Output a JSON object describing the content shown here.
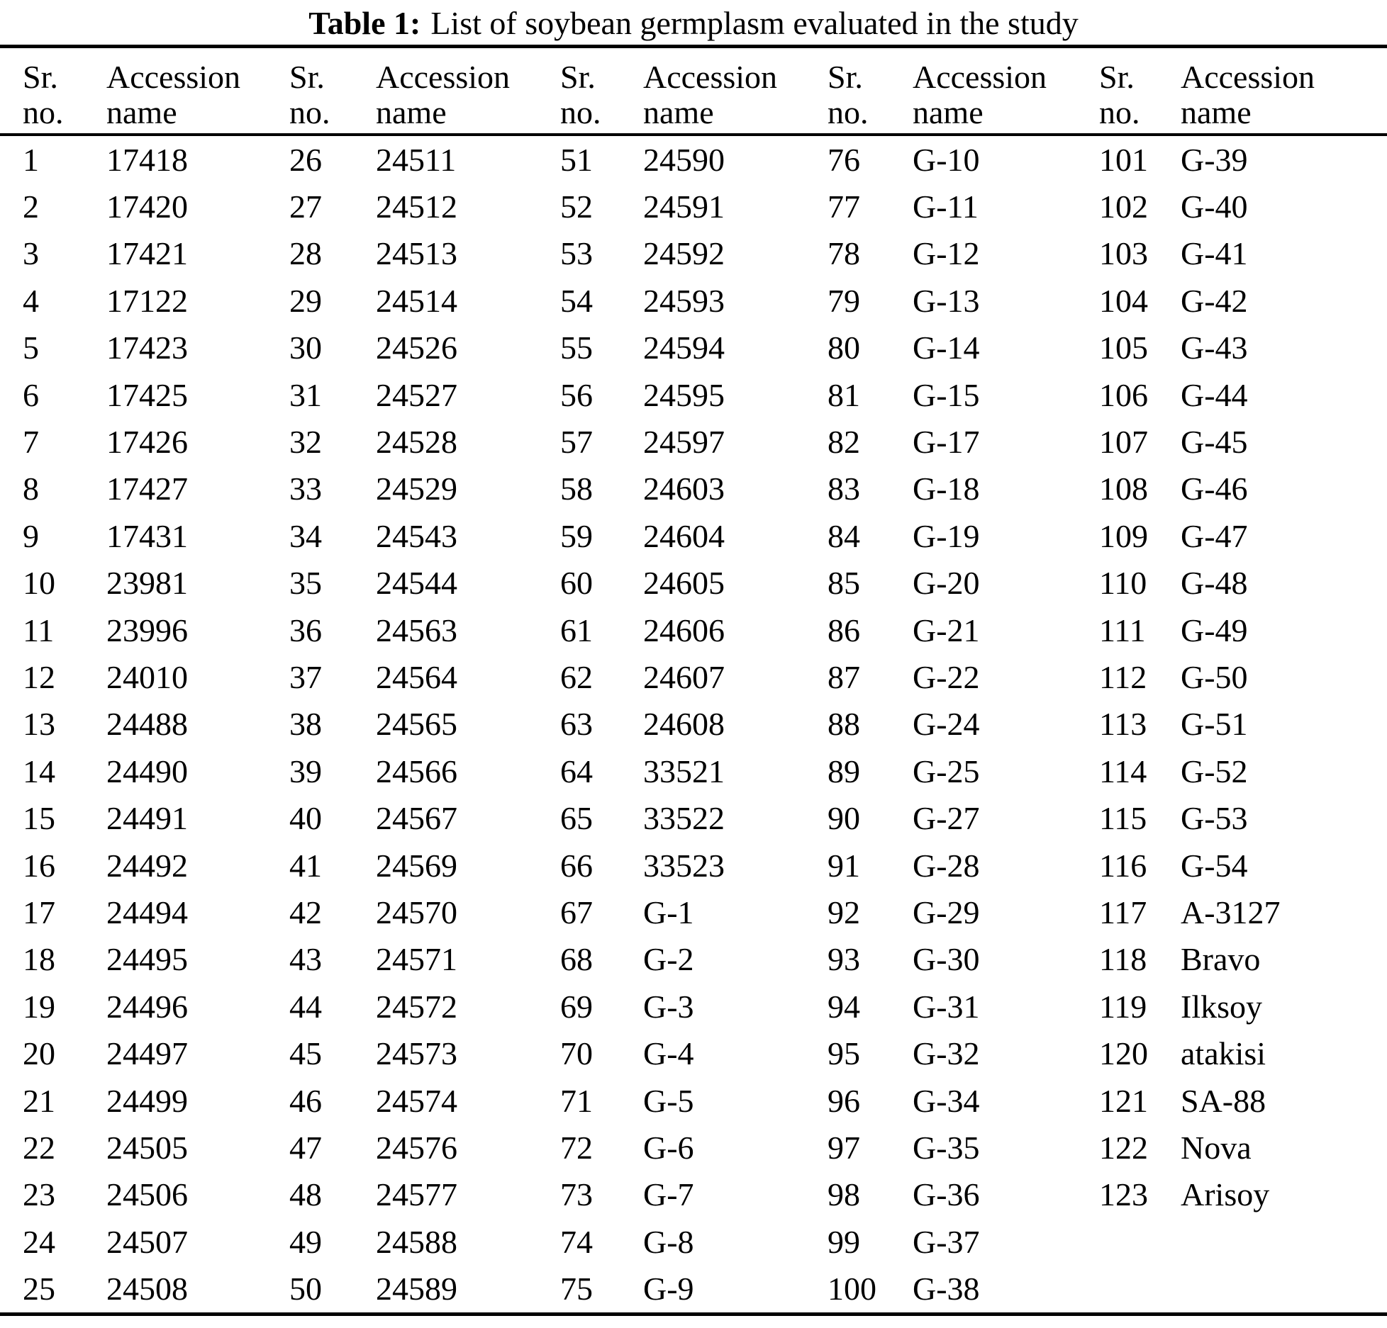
{
  "caption": {
    "label": "Table 1:",
    "text": "List of soybean germplasm evaluated in the study"
  },
  "header": {
    "sr_line1": "Sr.",
    "sr_line2": "no.",
    "name_line1": "Accession",
    "name_line2": "name"
  },
  "table": {
    "row_count": 25,
    "columns": [
      {
        "entries": [
          {
            "no": "1",
            "name": "17418"
          },
          {
            "no": "2",
            "name": "17420"
          },
          {
            "no": "3",
            "name": "17421"
          },
          {
            "no": "4",
            "name": "17122"
          },
          {
            "no": "5",
            "name": "17423"
          },
          {
            "no": "6",
            "name": "17425"
          },
          {
            "no": "7",
            "name": "17426"
          },
          {
            "no": "8",
            "name": "17427"
          },
          {
            "no": "9",
            "name": "17431"
          },
          {
            "no": "10",
            "name": "23981"
          },
          {
            "no": "11",
            "name": "23996"
          },
          {
            "no": "12",
            "name": "24010"
          },
          {
            "no": "13",
            "name": "24488"
          },
          {
            "no": "14",
            "name": "24490"
          },
          {
            "no": "15",
            "name": "24491"
          },
          {
            "no": "16",
            "name": "24492"
          },
          {
            "no": "17",
            "name": "24494"
          },
          {
            "no": "18",
            "name": "24495"
          },
          {
            "no": "19",
            "name": "24496"
          },
          {
            "no": "20",
            "name": "24497"
          },
          {
            "no": "21",
            "name": "24499"
          },
          {
            "no": "22",
            "name": "24505"
          },
          {
            "no": "23",
            "name": "24506"
          },
          {
            "no": "24",
            "name": "24507"
          },
          {
            "no": "25",
            "name": "24508"
          }
        ]
      },
      {
        "entries": [
          {
            "no": "26",
            "name": "24511"
          },
          {
            "no": "27",
            "name": "24512"
          },
          {
            "no": "28",
            "name": "24513"
          },
          {
            "no": "29",
            "name": "24514"
          },
          {
            "no": "30",
            "name": "24526"
          },
          {
            "no": "31",
            "name": "24527"
          },
          {
            "no": "32",
            "name": "24528"
          },
          {
            "no": "33",
            "name": "24529"
          },
          {
            "no": "34",
            "name": "24543"
          },
          {
            "no": "35",
            "name": "24544"
          },
          {
            "no": "36",
            "name": "24563"
          },
          {
            "no": "37",
            "name": "24564"
          },
          {
            "no": "38",
            "name": "24565"
          },
          {
            "no": "39",
            "name": "24566"
          },
          {
            "no": "40",
            "name": "24567"
          },
          {
            "no": "41",
            "name": "24569"
          },
          {
            "no": "42",
            "name": "24570"
          },
          {
            "no": "43",
            "name": "24571"
          },
          {
            "no": "44",
            "name": "24572"
          },
          {
            "no": "45",
            "name": "24573"
          },
          {
            "no": "46",
            "name": "24574"
          },
          {
            "no": "47",
            "name": "24576"
          },
          {
            "no": "48",
            "name": "24577"
          },
          {
            "no": "49",
            "name": "24588"
          },
          {
            "no": "50",
            "name": "24589"
          }
        ]
      },
      {
        "entries": [
          {
            "no": "51",
            "name": "24590"
          },
          {
            "no": "52",
            "name": "24591"
          },
          {
            "no": "53",
            "name": "24592"
          },
          {
            "no": "54",
            "name": "24593"
          },
          {
            "no": "55",
            "name": "24594"
          },
          {
            "no": "56",
            "name": "24595"
          },
          {
            "no": "57",
            "name": "24597"
          },
          {
            "no": "58",
            "name": "24603"
          },
          {
            "no": "59",
            "name": "24604"
          },
          {
            "no": "60",
            "name": "24605"
          },
          {
            "no": "61",
            "name": "24606"
          },
          {
            "no": "62",
            "name": "24607"
          },
          {
            "no": "63",
            "name": "24608"
          },
          {
            "no": "64",
            "name": "33521"
          },
          {
            "no": "65",
            "name": "33522"
          },
          {
            "no": "66",
            "name": "33523"
          },
          {
            "no": "67",
            "name": "G-1"
          },
          {
            "no": "68",
            "name": "G-2"
          },
          {
            "no": "69",
            "name": "G-3"
          },
          {
            "no": "70",
            "name": "G-4"
          },
          {
            "no": "71",
            "name": "G-5"
          },
          {
            "no": "72",
            "name": "G-6"
          },
          {
            "no": "73",
            "name": "G-7"
          },
          {
            "no": "74",
            "name": "G-8"
          },
          {
            "no": "75",
            "name": "G-9"
          }
        ]
      },
      {
        "entries": [
          {
            "no": "76",
            "name": "G-10"
          },
          {
            "no": "77",
            "name": "G-11"
          },
          {
            "no": "78",
            "name": "G-12"
          },
          {
            "no": "79",
            "name": "G-13"
          },
          {
            "no": "80",
            "name": "G-14"
          },
          {
            "no": "81",
            "name": "G-15"
          },
          {
            "no": "82",
            "name": "G-17"
          },
          {
            "no": "83",
            "name": "G-18"
          },
          {
            "no": "84",
            "name": "G-19"
          },
          {
            "no": "85",
            "name": "G-20"
          },
          {
            "no": "86",
            "name": "G-21"
          },
          {
            "no": "87",
            "name": "G-22"
          },
          {
            "no": "88",
            "name": "G-24"
          },
          {
            "no": "89",
            "name": "G-25"
          },
          {
            "no": "90",
            "name": "G-27"
          },
          {
            "no": "91",
            "name": "G-28"
          },
          {
            "no": "92",
            "name": "G-29"
          },
          {
            "no": "93",
            "name": "G-30"
          },
          {
            "no": "94",
            "name": "G-31"
          },
          {
            "no": "95",
            "name": "G-32"
          },
          {
            "no": "96",
            "name": "G-34"
          },
          {
            "no": "97",
            "name": "G-35"
          },
          {
            "no": "98",
            "name": "G-36"
          },
          {
            "no": "99",
            "name": "G-37"
          },
          {
            "no": "100",
            "name": "G-38"
          }
        ]
      },
      {
        "entries": [
          {
            "no": "101",
            "name": "G-39"
          },
          {
            "no": "102",
            "name": "G-40"
          },
          {
            "no": "103",
            "name": "G-41"
          },
          {
            "no": "104",
            "name": "G-42"
          },
          {
            "no": "105",
            "name": "G-43"
          },
          {
            "no": "106",
            "name": "G-44"
          },
          {
            "no": "107",
            "name": "G-45"
          },
          {
            "no": "108",
            "name": "G-46"
          },
          {
            "no": "109",
            "name": "G-47"
          },
          {
            "no": "110",
            "name": "G-48"
          },
          {
            "no": "111",
            "name": "G-49"
          },
          {
            "no": "112",
            "name": "G-50"
          },
          {
            "no": "113",
            "name": "G-51"
          },
          {
            "no": "114",
            "name": "G-52"
          },
          {
            "no": "115",
            "name": "G-53"
          },
          {
            "no": "116",
            "name": "G-54"
          },
          {
            "no": "117",
            "name": "A-3127"
          },
          {
            "no": "118",
            "name": "Bravo"
          },
          {
            "no": "119",
            "name": "Ilksoy"
          },
          {
            "no": "120",
            "name": "atakisi"
          },
          {
            "no": "121",
            "name": "SA-88"
          },
          {
            "no": "122",
            "name": "Nova"
          },
          {
            "no": "123",
            "name": "Arisoy"
          }
        ]
      }
    ]
  }
}
